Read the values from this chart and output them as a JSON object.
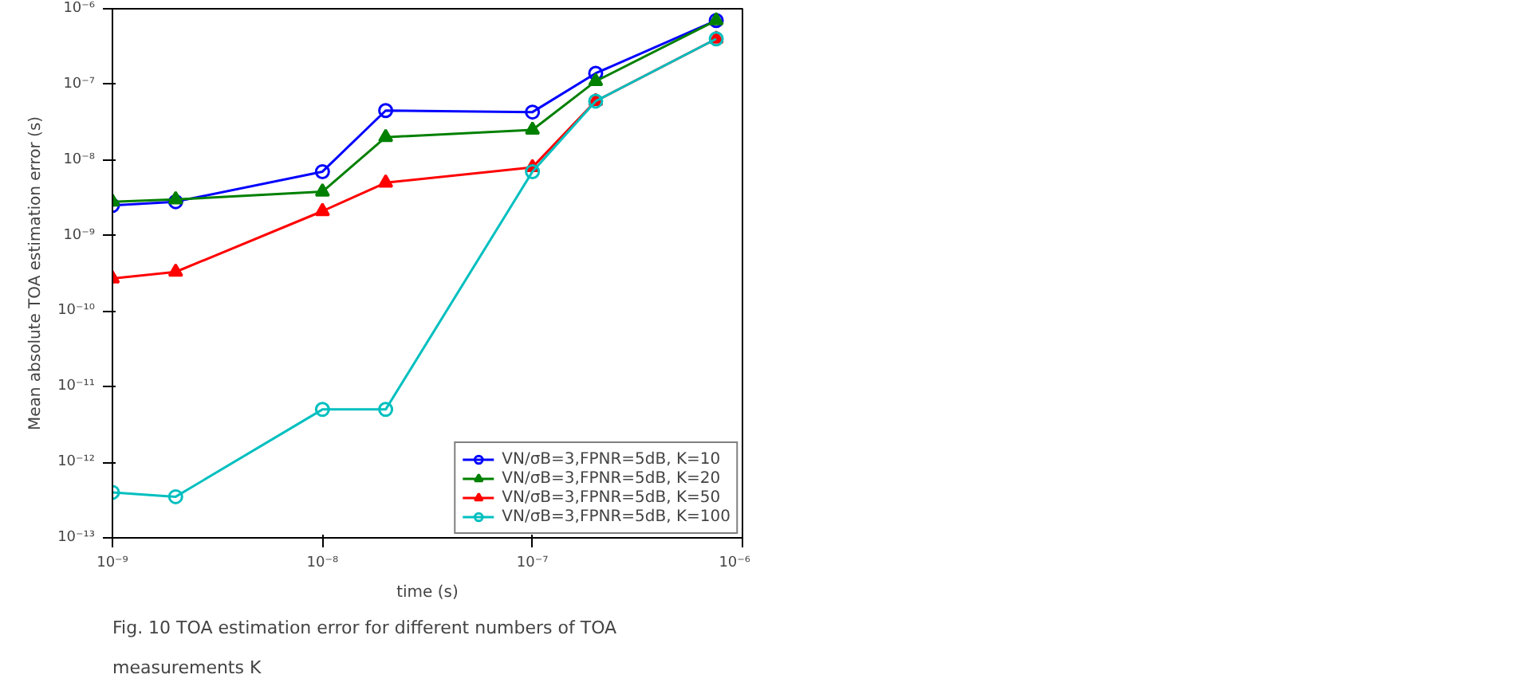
{
  "chart_data": {
    "type": "line",
    "xlabel": "time (s)",
    "ylabel": "Mean absolute TOA estimation error (s)",
    "annotations": [
      "Fig. 10 TOA estimation error for different numbers of TOA measurements K"
    ],
    "x": [
      1e-09,
      2e-09,
      1e-08,
      2e-08,
      1e-07,
      2e-07,
      7.5e-07
    ],
    "series": [
      {
        "name": "VN/σB=3,FPNR=5dB, K=10",
        "color": "#0000ff",
        "marker": "circle",
        "values": [
          2.5e-09,
          2.8e-09,
          7e-09,
          4.5e-08,
          4.3e-08,
          1.4e-07,
          7e-07
        ]
      },
      {
        "name": "VN/σB=3,FPNR=5dB, K=20",
        "color": "#008000",
        "marker": "triangle",
        "values": [
          2.8e-09,
          3e-09,
          3.8e-09,
          2e-08,
          2.5e-08,
          1.1e-07,
          7e-07
        ]
      },
      {
        "name": "VN/σB=3,FPNR=5dB, K=50",
        "color": "#ff0000",
        "marker": "triangle",
        "values": [
          2.7e-10,
          3.3e-10,
          2.1e-09,
          5e-09,
          8e-09,
          6e-08,
          4e-07
        ]
      },
      {
        "name": "VN/σB=3,FPNR=5dB, K=100",
        "color": "#00bfbf",
        "marker": "circle",
        "values": [
          4e-13,
          3.5e-13,
          5e-12,
          5e-12,
          7e-09,
          6e-08,
          4e-07
        ]
      }
    ],
    "log": "xy",
    "grid": false,
    "legend": "bottom right",
    "line_style": "solid",
    "xlim": [
      1e-09,
      1e-06
    ],
    "ylim": [
      1e-13,
      1e-06
    ],
    "xticks": [
      {
        "value": 1e-09,
        "label": "10⁻⁹"
      },
      {
        "value": 1e-08,
        "label": "10⁻⁸"
      },
      {
        "value": 1e-07,
        "label": "10⁻⁷"
      },
      {
        "value": 1e-06,
        "label": "10⁻⁶"
      }
    ],
    "yticks": [
      {
        "value": 1e-13,
        "label": "10⁻¹³"
      },
      {
        "value": 1e-12,
        "label": "10⁻¹²"
      },
      {
        "value": 1e-11,
        "label": "10⁻¹¹"
      },
      {
        "value": 1e-10,
        "label": "10⁻¹⁰"
      },
      {
        "value": 1e-09,
        "label": "10⁻⁹"
      },
      {
        "value": 1e-08,
        "label": "10⁻⁸"
      },
      {
        "value": 1e-07,
        "label": "10⁻⁷"
      },
      {
        "value": 1e-06,
        "label": "10⁻⁶"
      }
    ]
  }
}
